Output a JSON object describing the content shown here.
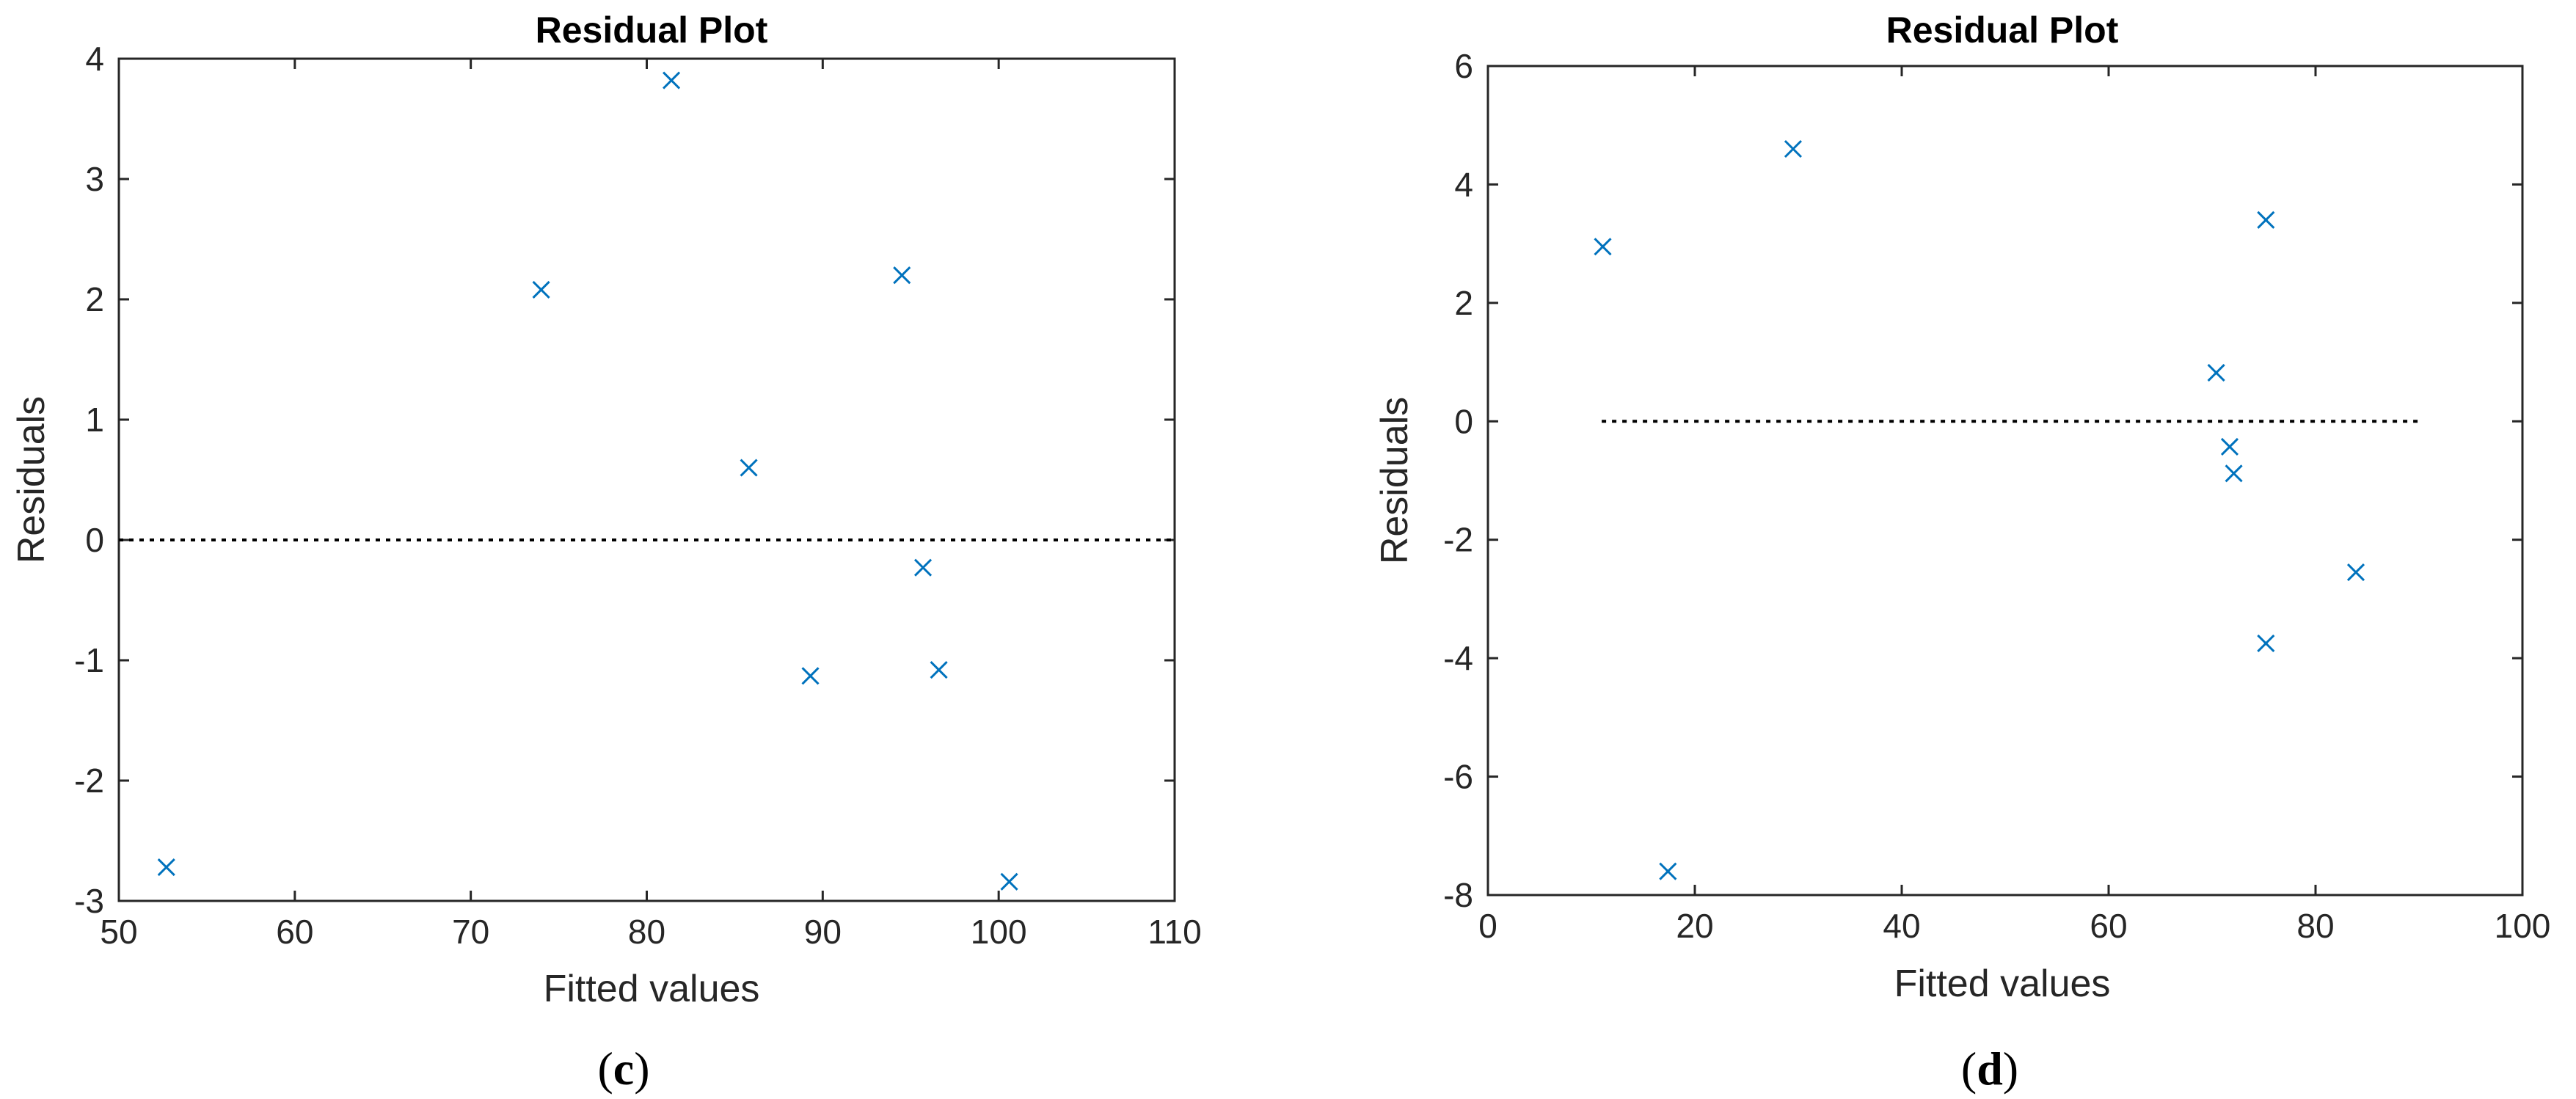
{
  "panels": [
    {
      "panel_label": "c",
      "chart_data": {
        "type": "scatter",
        "title": "Residual Plot",
        "xlabel": "Fitted values",
        "ylabel": "Residuals",
        "xlim": [
          50,
          110
        ],
        "ylim": [
          -3,
          4
        ],
        "xticks": [
          50,
          60,
          70,
          80,
          90,
          100,
          110
        ],
        "yticks": [
          -3,
          -2,
          -1,
          0,
          1,
          2,
          3,
          4
        ],
        "marker": "x",
        "marker_color": "#0072BD",
        "zero_line": {
          "y": 0,
          "x_from": 50,
          "x_to": 110,
          "style": "dotted"
        },
        "points": [
          {
            "x": 52.7,
            "y": -2.72
          },
          {
            "x": 74.0,
            "y": 2.08
          },
          {
            "x": 81.4,
            "y": 3.82
          },
          {
            "x": 85.8,
            "y": 0.6
          },
          {
            "x": 89.3,
            "y": -1.13
          },
          {
            "x": 94.5,
            "y": 2.2
          },
          {
            "x": 95.7,
            "y": -0.23
          },
          {
            "x": 96.6,
            "y": -1.08
          },
          {
            "x": 100.6,
            "y": -2.84
          }
        ]
      }
    },
    {
      "panel_label": "d",
      "chart_data": {
        "type": "scatter",
        "title": "Residual Plot",
        "xlabel": "Fitted values",
        "ylabel": "Residuals",
        "xlim": [
          0,
          100
        ],
        "ylim": [
          -8,
          6
        ],
        "xticks": [
          0,
          20,
          40,
          60,
          80,
          100
        ],
        "yticks": [
          -8,
          -6,
          -4,
          -2,
          0,
          2,
          4,
          6
        ],
        "marker": "x",
        "marker_color": "#0072BD",
        "zero_line": {
          "y": 0,
          "x_from": 11,
          "x_to": 90,
          "style": "dotted"
        },
        "points": [
          {
            "x": 11.1,
            "y": 2.95
          },
          {
            "x": 17.4,
            "y": -7.6
          },
          {
            "x": 29.5,
            "y": 4.6
          },
          {
            "x": 70.4,
            "y": 0.82
          },
          {
            "x": 71.7,
            "y": -0.43
          },
          {
            "x": 72.1,
            "y": -0.88
          },
          {
            "x": 75.2,
            "y": 3.4
          },
          {
            "x": 75.2,
            "y": -3.75
          },
          {
            "x": 83.9,
            "y": -2.55
          }
        ]
      }
    }
  ]
}
